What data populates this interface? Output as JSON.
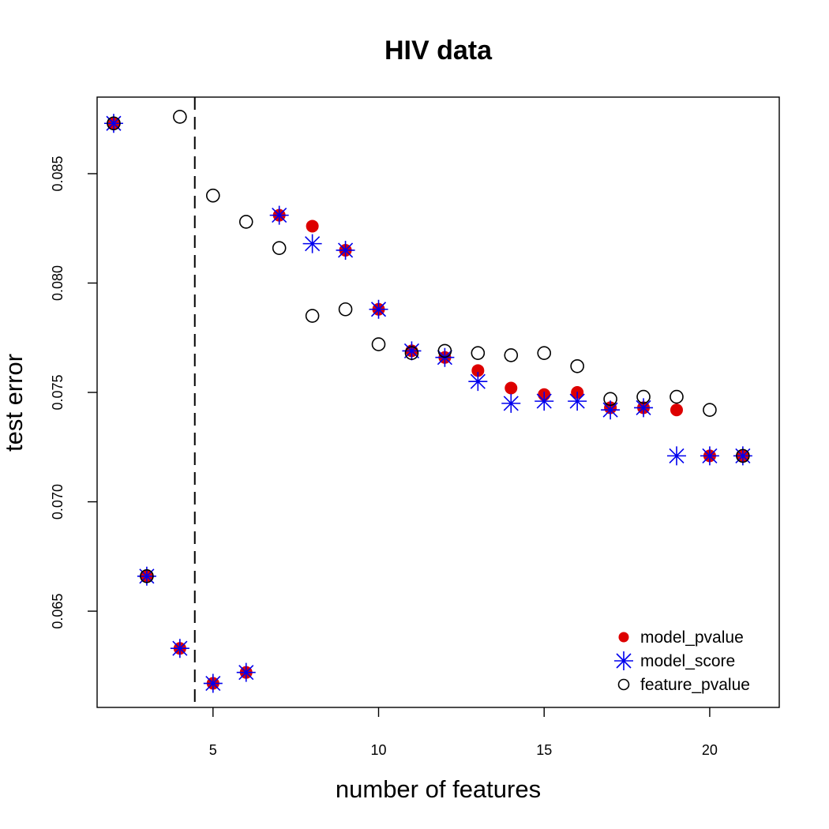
{
  "chart_data": {
    "type": "scatter",
    "title": "HIV data",
    "xlabel": "number of features",
    "ylabel": "test error",
    "xlim": [
      1.5,
      22.1
    ],
    "ylim": [
      0.0606,
      0.0885
    ],
    "x_ticks": [
      5,
      10,
      15,
      20
    ],
    "x_tick_labels": [
      "5",
      "10",
      "15",
      "20"
    ],
    "y_ticks": [
      0.065,
      0.07,
      0.075,
      0.08,
      0.085
    ],
    "y_tick_labels": [
      "0.065",
      "0.070",
      "0.075",
      "0.080",
      "0.085"
    ],
    "grid": false,
    "legend_position": "bottom-right",
    "vline": {
      "x": 4.45,
      "style": "dashed"
    },
    "series": [
      {
        "name": "model_pvalue",
        "marker": "filled-circle",
        "color": "#dd0000",
        "x": [
          2,
          3,
          4,
          5,
          6,
          7,
          8,
          9,
          10,
          11,
          12,
          13,
          14,
          15,
          16,
          17,
          18,
          19,
          20,
          21
        ],
        "y": [
          0.0873,
          0.0666,
          0.0633,
          0.0617,
          0.0622,
          0.0831,
          0.0826,
          0.0815,
          0.0788,
          0.0769,
          0.0766,
          0.076,
          0.0752,
          0.0749,
          0.075,
          0.0743,
          0.0743,
          0.0742,
          0.0721,
          0.0721
        ]
      },
      {
        "name": "model_score",
        "marker": "asterisk",
        "color": "#0000ee",
        "x": [
          2,
          3,
          4,
          5,
          6,
          7,
          8,
          9,
          10,
          11,
          12,
          13,
          14,
          15,
          16,
          17,
          18,
          19,
          20,
          21
        ],
        "y": [
          0.0873,
          0.0666,
          0.0633,
          0.0617,
          0.0622,
          0.0831,
          0.0818,
          0.0815,
          0.0788,
          0.0769,
          0.0766,
          0.0755,
          0.0745,
          0.0746,
          0.0746,
          0.0742,
          0.0743,
          0.0721,
          0.0721,
          0.0721
        ]
      },
      {
        "name": "feature_pvalue",
        "marker": "open-circle",
        "color": "#000000",
        "x": [
          2,
          3,
          4,
          5,
          6,
          7,
          8,
          9,
          10,
          11,
          12,
          13,
          14,
          15,
          16,
          17,
          18,
          19,
          20,
          21
        ],
        "y": [
          0.0873,
          0.0666,
          0.0876,
          0.084,
          0.0828,
          0.0816,
          0.0785,
          0.0788,
          0.0772,
          0.0768,
          0.0769,
          0.0768,
          0.0767,
          0.0768,
          0.0762,
          0.0747,
          0.0748,
          0.0748,
          0.0742,
          0.0721
        ]
      }
    ]
  }
}
